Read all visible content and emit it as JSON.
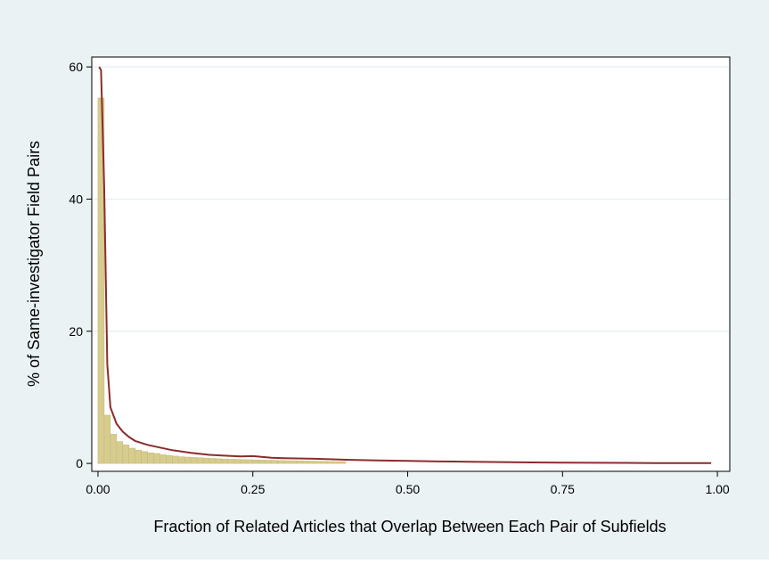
{
  "chart_data": {
    "type": "bar",
    "title": "",
    "xlabel": "Fraction of Related Articles that Overlap Between Each Pair of Subfields",
    "ylabel": "% of Same-investigator Field Pairs",
    "xlim": [
      -0.01,
      1.02
    ],
    "ylim": [
      -1.2,
      61.5
    ],
    "x_ticks": [
      0,
      0.25,
      0.5,
      0.75,
      1
    ],
    "x_tick_labels": [
      "0.00",
      "0.25",
      "0.50",
      "0.75",
      "1.00"
    ],
    "y_ticks": [
      0,
      20,
      40,
      60
    ],
    "y_tick_labels": [
      "0",
      "20",
      "40",
      "60"
    ],
    "grid": "horizontal",
    "bar_color": "#d7cc8f",
    "bar_edge_color": "#c8bb76",
    "line_color": "#8b2c2c",
    "histogram": {
      "bin_width": 0.01,
      "bin_starts": [
        0,
        0.01,
        0.02,
        0.03,
        0.04,
        0.05,
        0.06,
        0.07,
        0.08,
        0.09,
        0.1,
        0.11,
        0.12,
        0.13,
        0.14,
        0.15,
        0.16,
        0.17,
        0.18,
        0.19,
        0.2,
        0.21,
        0.22,
        0.23,
        0.24,
        0.25,
        0.26,
        0.27,
        0.28,
        0.29,
        0.3,
        0.31,
        0.32,
        0.33,
        0.34,
        0.35,
        0.36,
        0.37,
        0.38,
        0.39
      ],
      "values": [
        55.3,
        7.3,
        4.4,
        3.3,
        2.8,
        2.3,
        2.0,
        1.8,
        1.6,
        1.5,
        1.3,
        1.2,
        1.1,
        1.0,
        0.95,
        0.9,
        0.85,
        0.8,
        0.75,
        0.7,
        0.65,
        0.62,
        0.6,
        0.58,
        0.55,
        0.52,
        0.5,
        0.48,
        0.46,
        0.44,
        0.42,
        0.4,
        0.38,
        0.36,
        0.34,
        0.32,
        0.3,
        0.28,
        0.27,
        0.26
      ]
    },
    "density_line": {
      "x": [
        0.002,
        0.005,
        0.01,
        0.015,
        0.02,
        0.03,
        0.04,
        0.05,
        0.06,
        0.08,
        0.1,
        0.12,
        0.15,
        0.18,
        0.2,
        0.23,
        0.25,
        0.28,
        0.3,
        0.35,
        0.4,
        0.45,
        0.5,
        0.55,
        0.6,
        0.65,
        0.7,
        0.75,
        0.8,
        0.85,
        0.9,
        0.95,
        0.99
      ],
      "y": [
        60.0,
        59.5,
        42.0,
        15.0,
        8.5,
        6.0,
        4.8,
        4.0,
        3.4,
        2.8,
        2.4,
        2.0,
        1.6,
        1.3,
        1.2,
        1.05,
        1.1,
        0.85,
        0.8,
        0.7,
        0.55,
        0.45,
        0.38,
        0.3,
        0.25,
        0.2,
        0.15,
        0.12,
        0.1,
        0.08,
        0.06,
        0.05,
        0.04
      ]
    }
  }
}
